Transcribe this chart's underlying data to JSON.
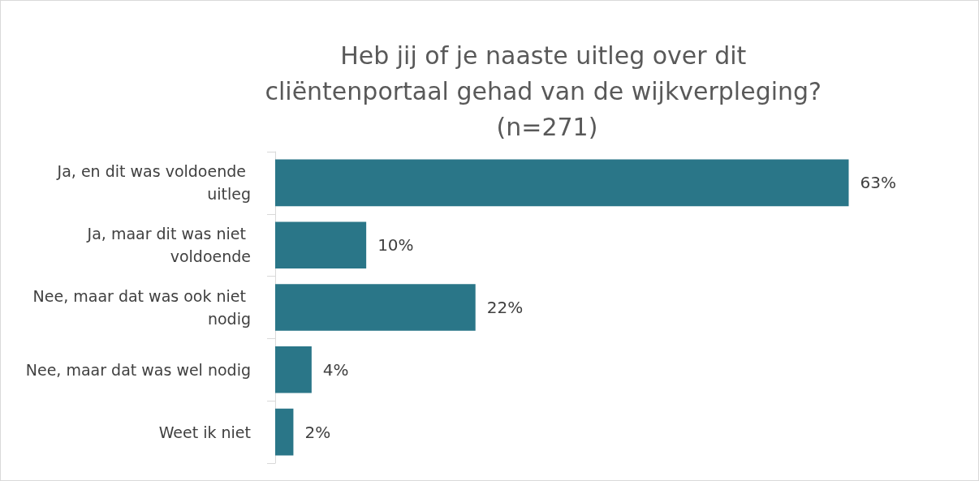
{
  "chart_data": {
    "type": "bar",
    "orientation": "horizontal",
    "title": "Heb jij of je naaste uitleg over dit cliëntenportaal gehad van de wijkverpleging? (n=271)",
    "categories": [
      "Ja, en dit was voldoende uitleg",
      "Ja, maar dit was niet voldoende",
      "Nee, maar dat was ook niet nodig",
      "Nee, maar dat was wel nodig",
      "Weet ik niet"
    ],
    "values": [
      63,
      10,
      22,
      4,
      2
    ],
    "value_labels": [
      "63%",
      "10%",
      "22%",
      "4%",
      "2%"
    ],
    "color": "#2a7688"
  }
}
